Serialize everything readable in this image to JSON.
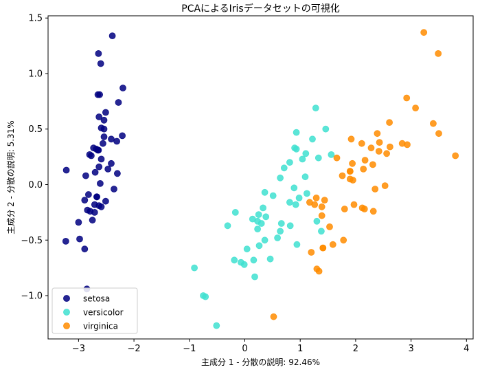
{
  "chart_data": {
    "type": "scatter",
    "title": "PCAによるIrisデータセットの可視化",
    "xlabel": "主成分 1 - 分散の説明: 92.46%",
    "ylabel": "主成分 2 - 分散の説明: 5.31%",
    "xlim": [
      -3.55,
      4.12
    ],
    "ylim": [
      -1.39,
      1.52
    ],
    "xticks": [
      -3,
      -2,
      -1,
      0,
      1,
      2,
      3,
      4
    ],
    "xtick_labels": [
      "−3",
      "−2",
      "−1",
      "0",
      "1",
      "2",
      "3",
      "4"
    ],
    "yticks": [
      -1.0,
      -0.5,
      0.0,
      0.5,
      1.0,
      1.5
    ],
    "ytick_labels": [
      "−1.0",
      "−0.5",
      "0.0",
      "0.5",
      "1.0",
      "1.5"
    ],
    "grid": false,
    "legend_position": "bottom-left",
    "series": [
      {
        "name": "setosa",
        "color": "#000080",
        "points": [
          [
            -2.68,
            0.32
          ],
          [
            -2.71,
            -0.18
          ],
          [
            -2.89,
            -0.14
          ],
          [
            -2.75,
            -0.32
          ],
          [
            -2.73,
            0.33
          ],
          [
            -2.28,
            0.74
          ],
          [
            -2.82,
            -0.09
          ],
          [
            -2.63,
            0.16
          ],
          [
            -2.89,
            -0.58
          ],
          [
            -2.67,
            -0.11
          ],
          [
            -2.51,
            0.65
          ],
          [
            -2.61,
            0.01
          ],
          [
            -2.79,
            -0.24
          ],
          [
            -3.23,
            -0.51
          ],
          [
            -2.64,
            1.18
          ],
          [
            -2.39,
            1.34
          ],
          [
            -2.62,
            0.81
          ],
          [
            -2.65,
            0.31
          ],
          [
            -2.2,
            0.87
          ],
          [
            -2.59,
            0.51
          ],
          [
            -2.31,
            0.39
          ],
          [
            -2.54,
            0.43
          ],
          [
            -3.22,
            0.13
          ],
          [
            -2.3,
            0.1
          ],
          [
            -2.36,
            -0.04
          ],
          [
            -2.51,
            -0.15
          ],
          [
            -2.47,
            0.14
          ],
          [
            -2.56,
            0.37
          ],
          [
            -2.64,
            0.31
          ],
          [
            -2.63,
            -0.19
          ],
          [
            -2.59,
            -0.2
          ],
          [
            -2.41,
            0.41
          ],
          [
            -2.65,
            0.81
          ],
          [
            -2.6,
            1.09
          ],
          [
            -2.67,
            -0.11
          ],
          [
            -2.87,
            0.08
          ],
          [
            -2.63,
            0.61
          ],
          [
            -2.8,
            0.27
          ],
          [
            -2.98,
            -0.49
          ],
          [
            -2.59,
            0.23
          ],
          [
            -2.77,
            0.26
          ],
          [
            -2.85,
            -0.94
          ],
          [
            -3.0,
            -0.34
          ],
          [
            -2.41,
            0.19
          ],
          [
            -2.21,
            0.44
          ],
          [
            -2.71,
            -0.25
          ],
          [
            -2.54,
            0.5
          ],
          [
            -2.84,
            -0.23
          ],
          [
            -2.54,
            0.58
          ],
          [
            -2.7,
            0.11
          ]
        ]
      },
      {
        "name": "versicolor",
        "color": "#40e0d0",
        "points": [
          [
            1.28,
            0.69
          ],
          [
            0.93,
            0.32
          ],
          [
            1.46,
            0.5
          ],
          [
            0.18,
            -0.83
          ],
          [
            1.09,
            0.07
          ],
          [
            0.64,
            -0.42
          ],
          [
            1.1,
            0.28
          ],
          [
            -0.75,
            -1.0
          ],
          [
            1.04,
            0.23
          ],
          [
            -0.01,
            -0.72
          ],
          [
            -0.51,
            -1.27
          ],
          [
            0.51,
            -0.1
          ],
          [
            0.26,
            -0.55
          ],
          [
            0.98,
            -0.12
          ],
          [
            -0.17,
            -0.25
          ],
          [
            0.93,
            0.47
          ],
          [
            0.66,
            -0.35
          ],
          [
            0.23,
            -0.33
          ],
          [
            0.94,
            -0.54
          ],
          [
            0.04,
            -0.58
          ],
          [
            1.12,
            -0.08
          ],
          [
            0.36,
            -0.07
          ],
          [
            1.3,
            -0.33
          ],
          [
            0.92,
            -0.18
          ],
          [
            0.71,
            0.15
          ],
          [
            0.9,
            0.33
          ],
          [
            1.33,
            0.24
          ],
          [
            1.56,
            0.27
          ],
          [
            0.81,
            -0.16
          ],
          [
            -0.31,
            -0.37
          ],
          [
            -0.07,
            -0.7
          ],
          [
            -0.19,
            -0.68
          ],
          [
            0.14,
            -0.31
          ],
          [
            1.38,
            -0.42
          ],
          [
            0.59,
            -0.48
          ],
          [
            0.81,
            0.2
          ],
          [
            1.22,
            0.41
          ],
          [
            0.82,
            -0.37
          ],
          [
            0.25,
            -0.27
          ],
          [
            0.16,
            -0.68
          ],
          [
            0.46,
            -0.67
          ],
          [
            0.89,
            -0.03
          ],
          [
            0.23,
            -0.4
          ],
          [
            -0.71,
            -1.01
          ],
          [
            0.36,
            -0.5
          ],
          [
            0.33,
            -0.21
          ],
          [
            0.38,
            -0.29
          ],
          [
            0.64,
            0.06
          ],
          [
            -0.91,
            -0.75
          ],
          [
            0.3,
            -0.35
          ]
        ]
      },
      {
        "name": "virginica",
        "color": "#ff8c00",
        "points": [
          [
            2.53,
            -0.01
          ],
          [
            1.41,
            -0.57
          ],
          [
            2.62,
            0.34
          ],
          [
            1.97,
            -0.18
          ],
          [
            2.35,
            -0.04
          ],
          [
            3.4,
            0.55
          ],
          [
            0.52,
            -1.19
          ],
          [
            2.93,
            0.36
          ],
          [
            2.32,
            -0.24
          ],
          [
            2.92,
            0.78
          ],
          [
            1.66,
            0.24
          ],
          [
            1.8,
            -0.22
          ],
          [
            2.17,
            0.22
          ],
          [
            1.34,
            -0.78
          ],
          [
            1.59,
            -0.54
          ],
          [
            1.9,
            0.12
          ],
          [
            1.95,
            0.04
          ],
          [
            3.49,
            1.18
          ],
          [
            3.8,
            0.26
          ],
          [
            1.3,
            -0.76
          ],
          [
            2.43,
            0.38
          ],
          [
            1.2,
            -0.61
          ],
          [
            3.5,
            0.46
          ],
          [
            1.39,
            -0.2
          ],
          [
            2.28,
            0.33
          ],
          [
            2.61,
            0.56
          ],
          [
            1.26,
            -0.18
          ],
          [
            1.29,
            -0.12
          ],
          [
            2.12,
            -0.21
          ],
          [
            2.39,
            0.46
          ],
          [
            2.84,
            0.37
          ],
          [
            3.23,
            1.37
          ],
          [
            2.16,
            -0.22
          ],
          [
            1.44,
            -0.14
          ],
          [
            1.78,
            -0.5
          ],
          [
            3.08,
            0.69
          ],
          [
            2.14,
            0.14
          ],
          [
            1.9,
            0.05
          ],
          [
            1.17,
            -0.16
          ],
          [
            2.11,
            0.37
          ],
          [
            2.31,
            0.18
          ],
          [
            1.92,
            0.41
          ],
          [
            1.41,
            -0.57
          ],
          [
            2.56,
            0.28
          ],
          [
            2.42,
            0.3
          ],
          [
            1.94,
            0.19
          ],
          [
            1.53,
            -0.38
          ],
          [
            1.76,
            0.08
          ],
          [
            1.9,
            0.12
          ],
          [
            1.39,
            -0.28
          ]
        ]
      }
    ]
  }
}
